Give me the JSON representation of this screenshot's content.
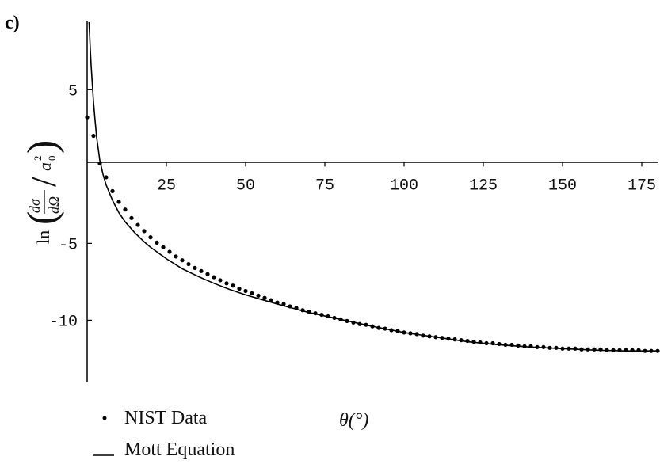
{
  "panel_label": "c)",
  "chart_data": {
    "type": "scatter",
    "xlabel": "θ(°)",
    "ylabel": "ln((dσ/dΩ)/a₀²)",
    "ylabel_parts": {
      "ln": "ln",
      "num": "dσ",
      "den": "dΩ",
      "a": "a",
      "sub": "0",
      "sup": "2"
    },
    "xlim": [
      0,
      180
    ],
    "ylim": [
      -14,
      9.5
    ],
    "x_ticks": [
      25,
      50,
      75,
      100,
      125,
      150,
      175
    ],
    "x_tick_labels": [
      "25",
      "50",
      "75",
      "100",
      "125",
      "150",
      "175"
    ],
    "y_ticks": [
      5,
      -5,
      -10
    ],
    "y_tick_labels": [
      "5",
      "-5",
      "-10"
    ],
    "grid": false,
    "legend_position": "bottom-left",
    "series": [
      {
        "name": "NIST Data",
        "kind": "points",
        "x": [
          0,
          2,
          4,
          6,
          8,
          10,
          12,
          14,
          16,
          18,
          20,
          22,
          24,
          26,
          28,
          30,
          32,
          34,
          36,
          38,
          40,
          42,
          44,
          46,
          48,
          50,
          52,
          54,
          56,
          58,
          60,
          62,
          64,
          66,
          68,
          70,
          72,
          74,
          76,
          78,
          80,
          82,
          84,
          86,
          88,
          90,
          92,
          94,
          96,
          98,
          100,
          102,
          104,
          106,
          108,
          110,
          112,
          114,
          116,
          118,
          120,
          122,
          124,
          126,
          128,
          130,
          132,
          134,
          136,
          138,
          140,
          142,
          144,
          146,
          148,
          150,
          152,
          154,
          156,
          158,
          160,
          162,
          164,
          166,
          168,
          170,
          172,
          174,
          176,
          178,
          180
        ],
        "y": [
          3.2,
          2.0,
          0.2,
          -0.7,
          -1.6,
          -2.3,
          -2.8,
          -3.35,
          -3.8,
          -4.2,
          -4.6,
          -4.95,
          -5.25,
          -5.55,
          -5.85,
          -6.1,
          -6.35,
          -6.6,
          -6.8,
          -7.0,
          -7.2,
          -7.4,
          -7.6,
          -7.75,
          -7.95,
          -8.1,
          -8.25,
          -8.4,
          -8.55,
          -8.7,
          -8.85,
          -8.95,
          -9.1,
          -9.2,
          -9.35,
          -9.45,
          -9.55,
          -9.65,
          -9.75,
          -9.85,
          -9.95,
          -10.05,
          -10.15,
          -10.25,
          -10.3,
          -10.4,
          -10.5,
          -10.55,
          -10.65,
          -10.7,
          -10.8,
          -10.85,
          -10.9,
          -11.0,
          -11.05,
          -11.1,
          -11.15,
          -11.2,
          -11.25,
          -11.3,
          -11.35,
          -11.4,
          -11.45,
          -11.5,
          -11.5,
          -11.55,
          -11.6,
          -11.6,
          -11.65,
          -11.7,
          -11.7,
          -11.75,
          -11.75,
          -11.8,
          -11.8,
          -11.85,
          -11.85,
          -11.85,
          -11.9,
          -11.9,
          -11.9,
          -11.9,
          -11.95,
          -11.95,
          -11.95,
          -11.95,
          -11.95,
          -11.95,
          -12.0,
          -12.0,
          -12.0
        ]
      },
      {
        "name": "Mott Equation",
        "kind": "line",
        "x": [
          0.6,
          0.8,
          1,
          1.25,
          1.5,
          2,
          2.5,
          3,
          4,
          5,
          6,
          8,
          10,
          12,
          15,
          18,
          20,
          25,
          30,
          35,
          40,
          45,
          50,
          55,
          60,
          70,
          80,
          90,
          100,
          110,
          120,
          130,
          140,
          150,
          160,
          170,
          180
        ],
        "y": [
          9.4,
          8.5,
          7.6,
          6.6,
          5.8,
          4.2,
          3.0,
          1.9,
          0.4,
          -0.5,
          -1.2,
          -2.2,
          -3.0,
          -3.6,
          -4.3,
          -4.9,
          -5.25,
          -6.0,
          -6.65,
          -7.15,
          -7.6,
          -8.0,
          -8.35,
          -8.65,
          -8.95,
          -9.5,
          -9.95,
          -10.4,
          -10.8,
          -11.1,
          -11.4,
          -11.6,
          -11.75,
          -11.85,
          -11.95,
          -12.0,
          -12.0
        ]
      }
    ]
  }
}
